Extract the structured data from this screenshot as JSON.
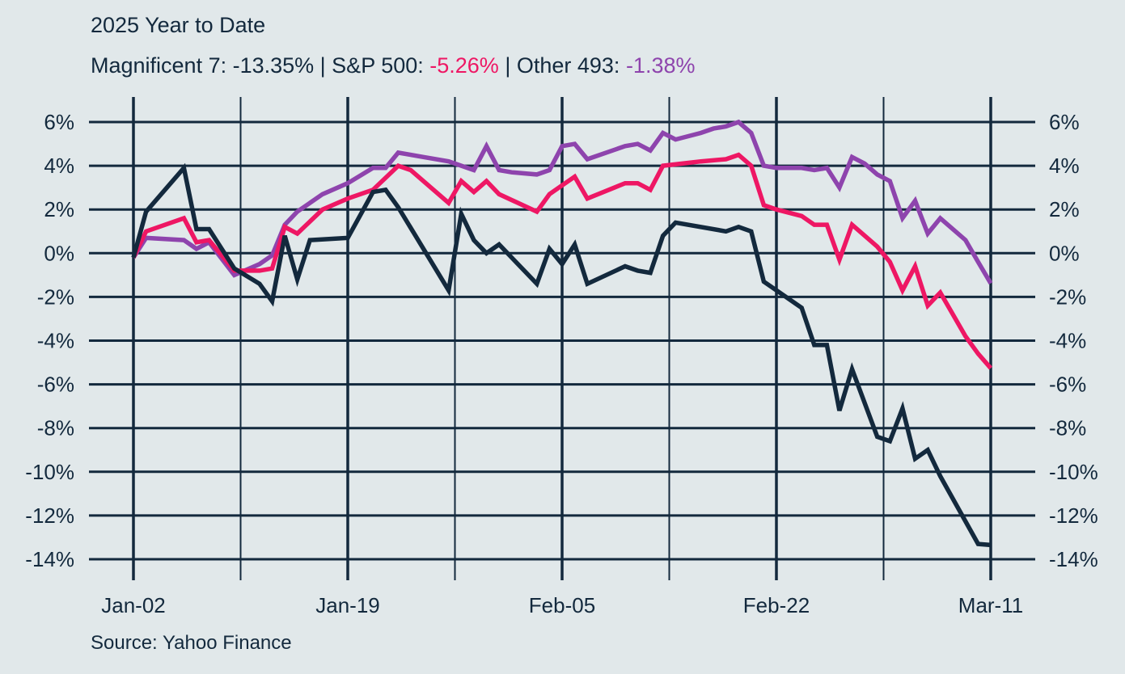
{
  "header": {
    "title": "2025 Year to Date",
    "subtitle_parts": [
      {
        "text": "Magnificent 7: -13.35% | S&P 500: ",
        "color": "#13293d"
      },
      {
        "text": "-5.26%",
        "color": "#ee1764"
      },
      {
        "text": " | Other 493: ",
        "color": "#13293d"
      },
      {
        "text": "-1.38%",
        "color": "#8e44ad"
      }
    ]
  },
  "footer": {
    "source": "Source: Yahoo Finance"
  },
  "chart_data": {
    "type": "line",
    "title": "2025 Year to Date",
    "subtitle": "Magnificent 7: -13.35% | S&P 500: -5.26% | Other 493: -1.38%",
    "xlabel": "",
    "ylabel": "",
    "x_unit": "days since Jan-02",
    "xlim": [
      0,
      68
    ],
    "ylim": [
      -14,
      6
    ],
    "y_ticks": [
      6,
      4,
      2,
      0,
      -2,
      -4,
      -6,
      -8,
      -10,
      -12,
      -14
    ],
    "y_tick_labels": [
      "6%",
      "4%",
      "2%",
      "0%",
      "-2%",
      "-4%",
      "-6%",
      "-8%",
      "-10%",
      "-12%",
      "-14%"
    ],
    "x_gridlines": [
      0,
      8.5,
      17,
      25.5,
      34,
      42.5,
      51,
      59.5,
      68
    ],
    "x_ticks": [
      0,
      17,
      34,
      51,
      68
    ],
    "x_tick_labels": [
      "Jan-02",
      "Jan-19",
      "Feb-05",
      "Feb-22",
      "Mar-11"
    ],
    "grid": true,
    "dual_y_axis": true,
    "series": [
      {
        "name": "Other 493",
        "color": "#8e44ad",
        "final_value": -1.38,
        "x": [
          0,
          1,
          4,
          5,
          6,
          8,
          10,
          11,
          12,
          13,
          15,
          17,
          19,
          20,
          21,
          22,
          23,
          25,
          27,
          28,
          29,
          30,
          32,
          33,
          34,
          35,
          36,
          38,
          39,
          40,
          41,
          42,
          43,
          45,
          46,
          47,
          48,
          49,
          50,
          51,
          53,
          54,
          55,
          56,
          57,
          58,
          59,
          60,
          61,
          62,
          63,
          64,
          66,
          67,
          68
        ],
        "y": [
          -0.2,
          0.7,
          0.6,
          0.2,
          0.5,
          -1.0,
          -0.5,
          -0.1,
          1.3,
          1.9,
          2.7,
          3.2,
          3.9,
          3.9,
          4.6,
          4.5,
          4.4,
          4.2,
          3.8,
          4.9,
          3.8,
          3.7,
          3.6,
          3.8,
          4.9,
          5.0,
          4.3,
          4.7,
          4.9,
          5.0,
          4.7,
          5.5,
          5.2,
          5.5,
          5.7,
          5.8,
          6.0,
          5.5,
          4.0,
          3.9,
          3.9,
          3.8,
          3.9,
          3.0,
          4.4,
          4.1,
          3.6,
          3.3,
          1.6,
          2.4,
          0.9,
          1.6,
          0.6,
          -0.4,
          -1.38
        ]
      },
      {
        "name": "S&P 500",
        "color": "#ee1764",
        "final_value": -5.26,
        "x": [
          0,
          1,
          4,
          5,
          6,
          8,
          10,
          11,
          12,
          13,
          15,
          17,
          19,
          21,
          22,
          25,
          26,
          27,
          28,
          29,
          32,
          33,
          34,
          35,
          36,
          39,
          40,
          41,
          42,
          45,
          47,
          48,
          49,
          50,
          51,
          53,
          54,
          55,
          56,
          57,
          59,
          60,
          61,
          62,
          63,
          64,
          66,
          67,
          68
        ],
        "y": [
          -0.2,
          1.0,
          1.6,
          0.5,
          0.6,
          -0.8,
          -0.8,
          -0.7,
          1.2,
          0.9,
          2.0,
          2.5,
          2.9,
          4.0,
          3.8,
          2.3,
          3.3,
          2.8,
          3.3,
          2.7,
          1.9,
          2.7,
          3.1,
          3.5,
          2.5,
          3.2,
          3.2,
          2.9,
          4.0,
          4.2,
          4.3,
          4.5,
          4.0,
          2.2,
          2.0,
          1.7,
          1.3,
          1.3,
          -0.3,
          1.3,
          0.3,
          -0.4,
          -1.7,
          -0.6,
          -2.4,
          -1.8,
          -3.8,
          -4.6,
          -5.26
        ]
      },
      {
        "name": "Magnificent 7",
        "color": "#13293d",
        "final_value": -13.35,
        "x": [
          0,
          1,
          4,
          5,
          6,
          8,
          10,
          11,
          12,
          13,
          14,
          17,
          19,
          20,
          21,
          25,
          26,
          27,
          28,
          29,
          32,
          33,
          34,
          35,
          36,
          39,
          40,
          41,
          42,
          43,
          47,
          48,
          49,
          50,
          51,
          53,
          54,
          55,
          56,
          57,
          59,
          60,
          61,
          62,
          63,
          64,
          67,
          68
        ],
        "y": [
          -0.2,
          1.9,
          3.9,
          1.1,
          1.1,
          -0.7,
          -1.4,
          -2.2,
          0.8,
          -1.2,
          0.6,
          0.7,
          2.8,
          2.9,
          2.1,
          -1.7,
          1.8,
          0.6,
          0.0,
          0.4,
          -1.4,
          0.2,
          -0.5,
          0.4,
          -1.4,
          -0.6,
          -0.8,
          -0.9,
          0.8,
          1.4,
          1.0,
          1.2,
          1.0,
          -1.3,
          -1.7,
          -2.5,
          -4.2,
          -4.2,
          -7.2,
          -5.3,
          -8.4,
          -8.6,
          -7.1,
          -9.4,
          -9.0,
          -10.2,
          -13.3,
          -13.35
        ]
      }
    ],
    "legend": "none (values in subtitle)"
  }
}
